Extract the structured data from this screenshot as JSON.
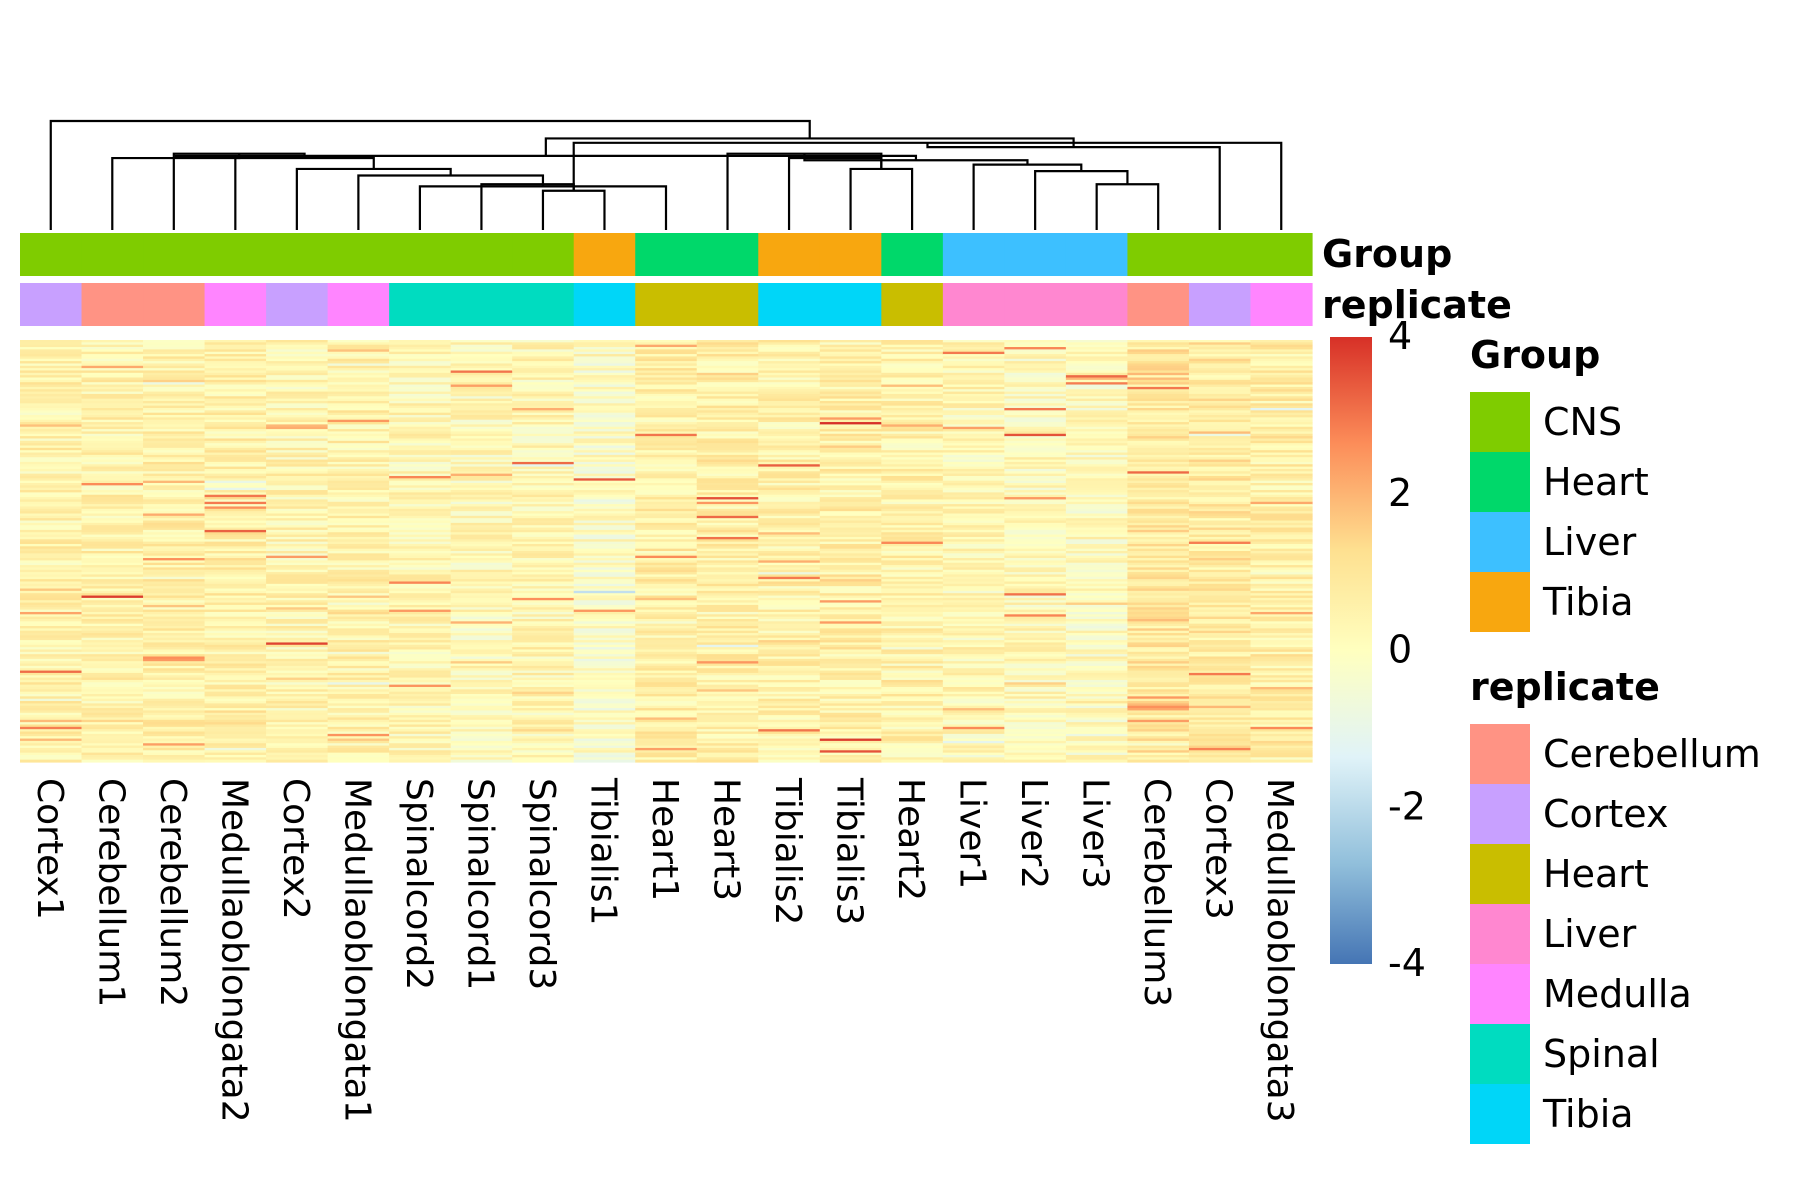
{
  "chart_data": {
    "type": "heatmap",
    "title": "",
    "xlabel": "",
    "ylabel": "",
    "samples": [
      "Cortex1",
      "Cerebellum1",
      "Cerebellum2",
      "Medullaoblongata2",
      "Cortex2",
      "Medullaoblongata1",
      "Spinalcord2",
      "Spinalcord1",
      "Spinalcord3",
      "Tibialis1",
      "Heart1",
      "Heart3",
      "Tibialis2",
      "Tibialis3",
      "Heart2",
      "Liver1",
      "Liver2",
      "Liver3",
      "Cerebellum3",
      "Cortex3",
      "Medullaoblongata3"
    ],
    "annotation_titles": {
      "group": "Group",
      "replicate": "replicate"
    },
    "group_annotation": [
      "CNS",
      "CNS",
      "CNS",
      "CNS",
      "CNS",
      "CNS",
      "CNS",
      "CNS",
      "CNS",
      "Tibia",
      "Heart",
      "Heart",
      "Tibia",
      "Tibia",
      "Heart",
      "Liver",
      "Liver",
      "Liver",
      "CNS",
      "CNS",
      "CNS"
    ],
    "replicate_annotation": [
      "Cortex",
      "Cerebellum",
      "Cerebellum",
      "Medulla",
      "Cortex",
      "Medulla",
      "Spinal",
      "Spinal",
      "Spinal",
      "Tibia",
      "Heart",
      "Heart",
      "Tibia",
      "Tibia",
      "Heart",
      "Liver",
      "Liver",
      "Liver",
      "Cerebellum",
      "Cortex",
      "Medulla"
    ],
    "legend_group": {
      "title": "Group",
      "items": [
        {
          "label": "CNS",
          "color": "#7FCC00"
        },
        {
          "label": "Heart",
          "color": "#00D86A"
        },
        {
          "label": "Liver",
          "color": "#3DC0FF"
        },
        {
          "label": "Tibia",
          "color": "#F8A70F"
        }
      ]
    },
    "legend_replicate": {
      "title": "replicate",
      "items": [
        {
          "label": "Cerebellum",
          "color": "#FF9384"
        },
        {
          "label": "Cortex",
          "color": "#C8A0FF"
        },
        {
          "label": "Heart",
          "color": "#C9BE00"
        },
        {
          "label": "Liver",
          "color": "#FF87D0"
        },
        {
          "label": "Medulla",
          "color": "#FF85FF"
        },
        {
          "label": "Spinal",
          "color": "#00DCC0"
        },
        {
          "label": "Tibia",
          "color": "#00D6F8"
        }
      ]
    },
    "color_scale": {
      "min": -4,
      "max": 4,
      "ticks": [
        "4",
        "2",
        "0",
        "-2",
        "-4"
      ],
      "tick_values": [
        4,
        2,
        0,
        -2,
        -4
      ],
      "colors": [
        "#4575B4",
        "#91BFDB",
        "#E0F3F8",
        "#FFFFBF",
        "#FEE090",
        "#FC8D59",
        "#D73027"
      ]
    },
    "dendrogram": {
      "merges": [
        [
          8,
          9,
          0.18
        ],
        [
          7,
          21,
          0.21
        ],
        [
          6,
          10,
          0.2
        ],
        [
          5,
          23,
          0.25
        ],
        [
          4,
          24,
          0.28
        ],
        [
          3,
          25,
          0.33
        ],
        [
          2,
          26,
          0.35
        ],
        [
          1,
          27,
          0.33
        ],
        [
          13,
          14,
          0.28
        ],
        [
          11,
          29,
          0.35
        ],
        [
          12,
          29,
          0.33
        ],
        [
          17,
          18,
          0.21
        ],
        [
          16,
          32,
          0.27
        ],
        [
          15,
          33,
          0.3
        ],
        [
          30,
          34,
          0.32
        ],
        [
          28,
          35,
          0.34
        ],
        [
          20,
          21,
          0.4
        ],
        [
          19,
          37,
          0.38
        ],
        [
          36,
          38,
          0.42
        ],
        [
          0,
          39,
          0.5
        ]
      ],
      "note_max_height": 1.0
    },
    "num_genes": 180
  }
}
